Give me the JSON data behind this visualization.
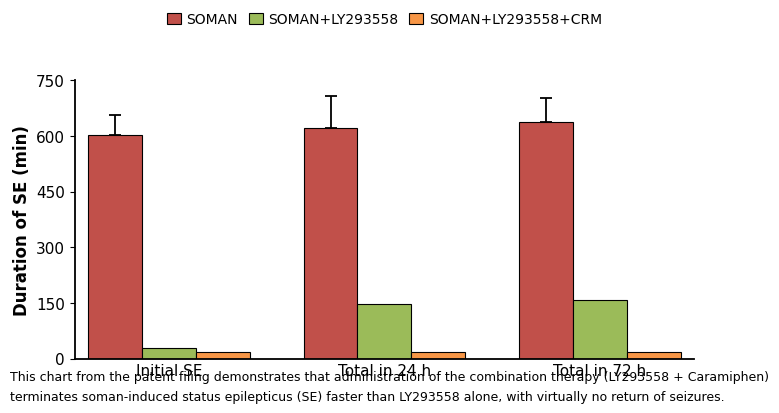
{
  "groups": [
    "Initial SE",
    "Total in 24 h",
    "Total in 72 h"
  ],
  "series": [
    {
      "label": "SOMAN",
      "color": "#C1504A",
      "values": [
        602,
        622,
        638
      ],
      "errors": [
        55,
        85,
        65
      ]
    },
    {
      "label": "SOMAN+LY293558",
      "color": "#9BBB59",
      "values": [
        30,
        148,
        158
      ],
      "errors": [
        0,
        0,
        0
      ]
    },
    {
      "label": "SOMAN+LY293558+CRM",
      "color": "#F79646",
      "values": [
        18,
        18,
        18
      ],
      "errors": [
        0,
        0,
        0
      ]
    }
  ],
  "ylabel": "Duration of SE (min)",
  "ylim": [
    0,
    750
  ],
  "yticks": [
    0,
    150,
    300,
    450,
    600,
    750
  ],
  "bar_width": 0.2,
  "group_positions": [
    0.35,
    1.15,
    1.95
  ],
  "legend_pos": "upper center",
  "caption_line1": "This chart from the patent filing demonstrates that administration of the combination therapy (LY293558 + Caramiphen)",
  "caption_line2": "terminates soman-induced status epilepticus (SE) faster than LY293558 alone, with virtually no return of seizures.",
  "caption_fontsize": 9.0,
  "axis_fontsize": 12,
  "tick_fontsize": 11,
  "legend_fontsize": 10,
  "background_color": "#ffffff"
}
